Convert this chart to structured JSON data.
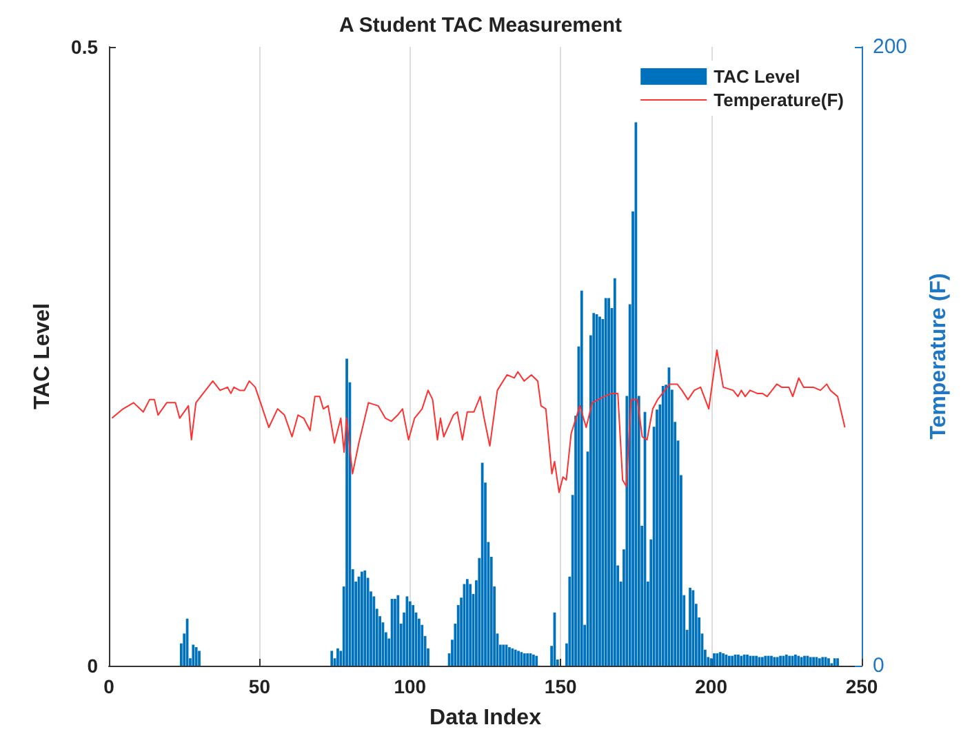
{
  "chart_data": {
    "type": "bar",
    "title": "A Student TAC Measurement",
    "xlabel": "Data Index",
    "ylabel": "TAC Level",
    "y2label": "Temperature (F)",
    "xlim": [
      0,
      250
    ],
    "xticks": [
      0,
      50,
      100,
      150,
      200,
      250
    ],
    "ylim": [
      0,
      0.5
    ],
    "yticks": [
      0,
      0.5
    ],
    "y2lim": [
      0,
      200
    ],
    "y2ticks": [
      0,
      200
    ],
    "grid": "x",
    "legend": "top right",
    "series": [
      {
        "name": "TAC Level",
        "color": "#0072bd",
        "axis": "y",
        "x": [
          24,
          25,
          26,
          27,
          28,
          29,
          30,
          74,
          75,
          76,
          77,
          78,
          79,
          80,
          81,
          82,
          83,
          84,
          85,
          86,
          87,
          88,
          89,
          90,
          91,
          92,
          93,
          94,
          95,
          96,
          97,
          98,
          99,
          100,
          101,
          102,
          103,
          104,
          105,
          106,
          113,
          114,
          115,
          116,
          117,
          118,
          119,
          120,
          121,
          122,
          123,
          124,
          125,
          126,
          127,
          128,
          129,
          130,
          131,
          132,
          133,
          134,
          135,
          136,
          137,
          138,
          139,
          140,
          141,
          142,
          147,
          148,
          149,
          152,
          153,
          154,
          155,
          156,
          157,
          158,
          159,
          160,
          161,
          162,
          163,
          164,
          165,
          166,
          167,
          168,
          169,
          170,
          171,
          172,
          173,
          174,
          175,
          176,
          177,
          178,
          179,
          180,
          181,
          182,
          183,
          184,
          185,
          186,
          187,
          188,
          189,
          190,
          191,
          192,
          193,
          194,
          195,
          196,
          197,
          198,
          199,
          200,
          201,
          202,
          203,
          204,
          205,
          206,
          207,
          208,
          209,
          210,
          211,
          212,
          213,
          214,
          215,
          216,
          217,
          218,
          219,
          220,
          221,
          222,
          223,
          224,
          225,
          226,
          227,
          228,
          229,
          230,
          231,
          232,
          233,
          234,
          235,
          236,
          237,
          238,
          239,
          240,
          241,
          242
        ],
        "values": [
          0.018,
          0.026,
          0.038,
          0.006,
          0.017,
          0.015,
          0.012,
          0.012,
          0.006,
          0.014,
          0.012,
          0.064,
          0.248,
          0.229,
          0.078,
          0.068,
          0.072,
          0.076,
          0.077,
          0.071,
          0.06,
          0.056,
          0.046,
          0.04,
          0.035,
          0.027,
          0.022,
          0.054,
          0.054,
          0.057,
          0.034,
          0.043,
          0.056,
          0.052,
          0.049,
          0.043,
          0.038,
          0.033,
          0.024,
          0.014,
          0.01,
          0.021,
          0.034,
          0.049,
          0.055,
          0.066,
          0.07,
          0.066,
          0.058,
          0.069,
          0.087,
          0.164,
          0.148,
          0.1,
          0.088,
          0.064,
          0.026,
          0.017,
          0.017,
          0.017,
          0.015,
          0.014,
          0.013,
          0.012,
          0.011,
          0.01,
          0.01,
          0.01,
          0.009,
          0.008,
          0.016,
          0.043,
          0.005,
          0.018,
          0.072,
          0.138,
          0.202,
          0.258,
          0.303,
          0.033,
          0.173,
          0.267,
          0.285,
          0.284,
          0.282,
          0.28,
          0.297,
          0.297,
          0.289,
          0.313,
          0.081,
          0.068,
          0.094,
          0.218,
          0.292,
          0.367,
          0.439,
          0.218,
          0.113,
          0.205,
          0.068,
          0.102,
          0.193,
          0.207,
          0.211,
          0.226,
          0.227,
          0.241,
          0.223,
          0.197,
          0.182,
          0.154,
          0.057,
          0.029,
          0.063,
          0.061,
          0.05,
          0.039,
          0.026,
          0.013,
          0.007,
          0.006,
          0.01,
          0.01,
          0.011,
          0.01,
          0.009,
          0.008,
          0.008,
          0.009,
          0.009,
          0.008,
          0.009,
          0.009,
          0.008,
          0.008,
          0.008,
          0.007,
          0.007,
          0.008,
          0.008,
          0.008,
          0.007,
          0.007,
          0.008,
          0.008,
          0.009,
          0.008,
          0.008,
          0.009,
          0.008,
          0.007,
          0.008,
          0.008,
          0.007,
          0.007,
          0.007,
          0.006,
          0.007,
          0.007,
          0.006,
          0.002,
          0.006,
          0.006
        ]
      },
      {
        "name": "Temperature(F)",
        "type": "line",
        "color": "#ff3030",
        "axis": "y2",
        "x": [
          1,
          4.7,
          8.2,
          11.4,
          13.5,
          15.1,
          16.3,
          19.2,
          22.1,
          23.5,
          26.4,
          27.4,
          28.9,
          32.1,
          34.5,
          36.9,
          39.4,
          40.5,
          41.5,
          43.4,
          45,
          46.6,
          48.6,
          50.7,
          53.1,
          56,
          58.3,
          60.8,
          62.8,
          64.7,
          66.8,
          68.4,
          70,
          71.2,
          72.8,
          74.9,
          77,
          78.1,
          78.9,
          80.9,
          83,
          86.2,
          89.4,
          91.8,
          93.8,
          95.9,
          97.5,
          99.5,
          101.5,
          104,
          106,
          107.5,
          109.1,
          110.1,
          111.2,
          114.4,
          115.7,
          117.4,
          119,
          121.2,
          123.3,
          124.6,
          126.5,
          129,
          132.2,
          134.6,
          135.8,
          137.9,
          140.3,
          142.4,
          143.5,
          145.1,
          147.1,
          148,
          149.5,
          150.8,
          151.9,
          153.5,
          156.4,
          158.5,
          160.5,
          164.5,
          166.9,
          169,
          170.6,
          171.8,
          173.4,
          175.5,
          177.1,
          178.7,
          180.6,
          182.2,
          184.6,
          186.3,
          188.7,
          190.3,
          192.3,
          194.4,
          196.5,
          199.2,
          201.9,
          204,
          207.3,
          208.9,
          210,
          211.3,
          212.9,
          215.3,
          217,
          218.6,
          221.8,
          223.4,
          225.8,
          227.1,
          229.1,
          230.7,
          233.9,
          236.3,
          238.4,
          239.6,
          242,
          244.4
        ],
        "values": [
          80,
          83,
          85,
          82,
          86,
          86,
          81,
          85,
          85,
          80,
          84,
          73,
          85,
          89,
          92,
          89,
          90,
          88,
          90,
          89,
          89,
          92,
          90,
          84,
          77,
          83,
          81,
          74,
          81,
          80,
          76,
          87,
          87,
          83,
          84,
          72,
          80,
          69,
          80,
          62,
          72,
          85,
          84,
          80,
          79,
          81,
          83,
          73,
          80,
          83,
          89,
          86,
          73,
          80,
          74,
          81,
          82,
          73,
          82,
          82,
          87,
          80,
          71,
          89,
          94,
          93,
          95,
          92,
          94,
          92,
          84,
          83,
          62,
          66,
          56,
          61,
          60,
          75,
          84,
          77,
          85,
          87,
          88,
          88,
          60,
          58,
          86,
          86,
          74,
          73,
          83,
          86,
          89,
          91,
          91,
          89,
          86,
          89,
          90,
          83,
          102,
          90,
          89,
          87,
          89,
          87,
          89,
          88,
          88,
          87,
          91,
          90,
          90,
          87,
          93,
          90,
          90,
          89,
          91,
          89,
          87,
          77
        ]
      }
    ]
  }
}
